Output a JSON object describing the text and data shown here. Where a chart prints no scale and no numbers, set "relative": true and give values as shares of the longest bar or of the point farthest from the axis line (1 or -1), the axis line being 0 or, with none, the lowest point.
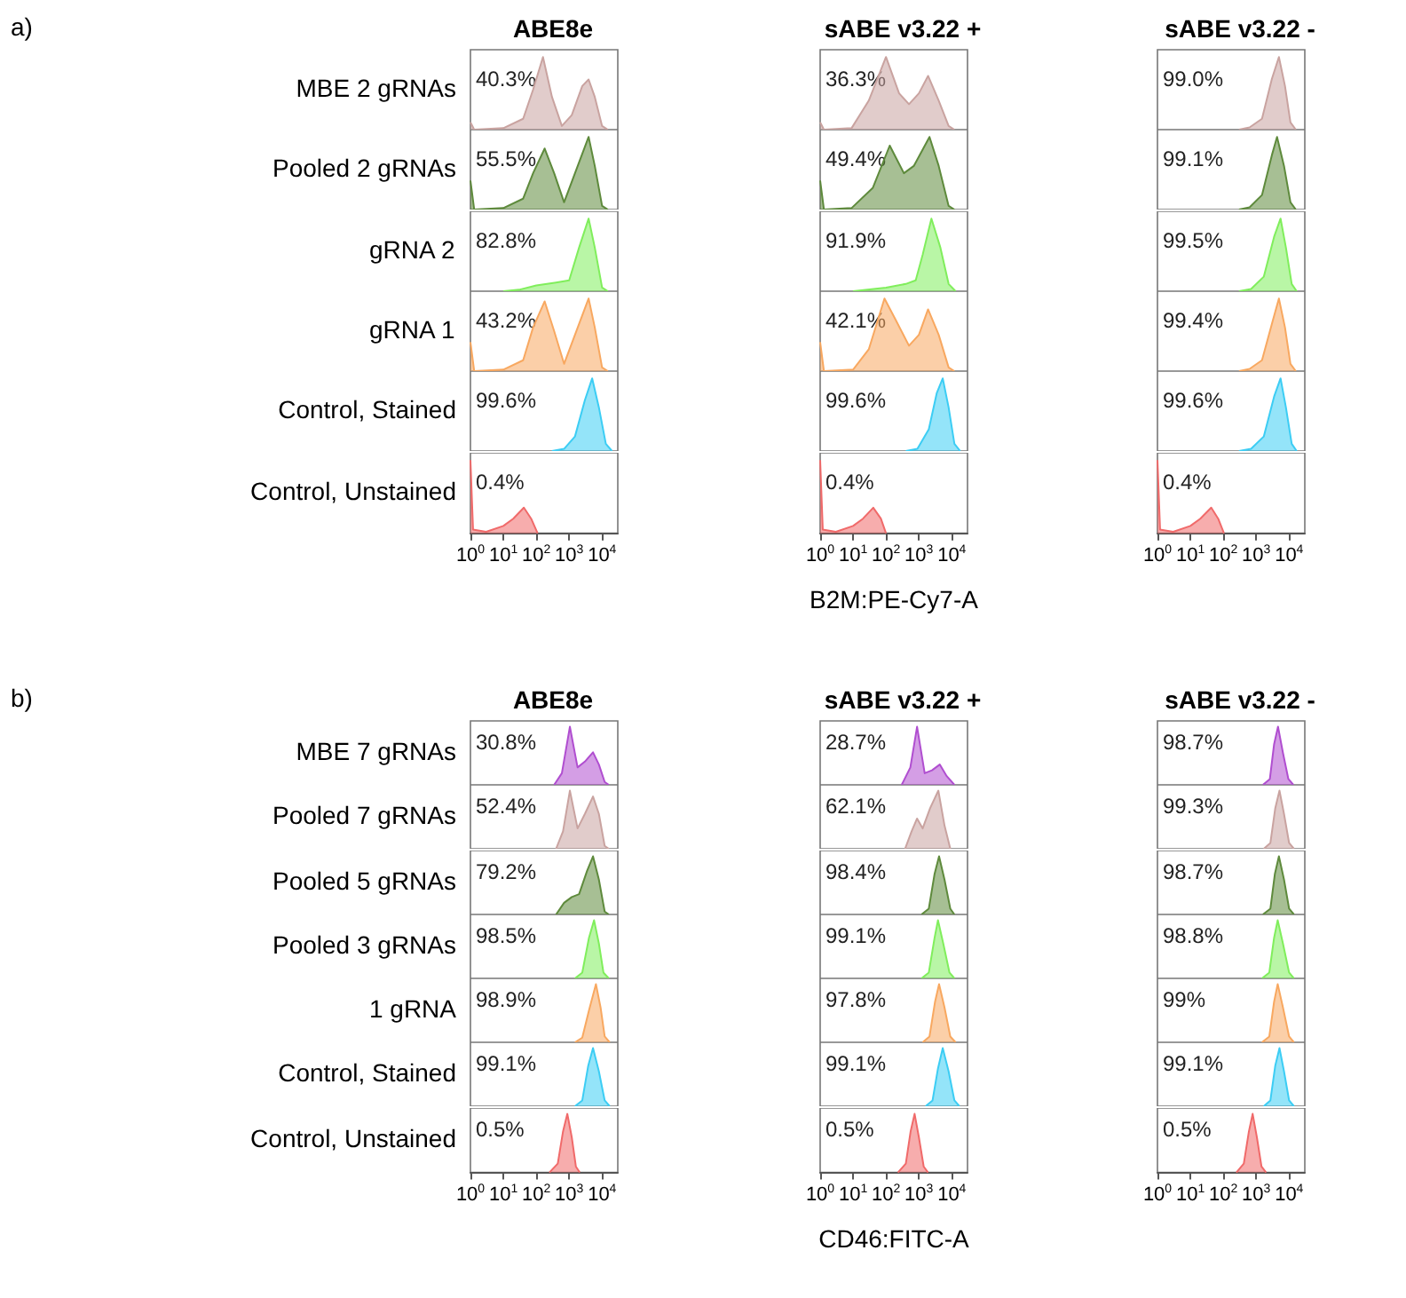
{
  "chart_data": [
    {
      "type": "area",
      "title": "ABE8e",
      "ylabel": "MBE 2 gRNAs",
      "annotations": [
        "40.3%",
        "a)"
      ],
      "x": [
        1,
        1.3,
        10,
        40,
        80,
        160,
        300,
        600,
        1200,
        2500,
        3900,
        6000,
        10000,
        15000
      ],
      "values": [
        0.1,
        0,
        0.02,
        0.15,
        0.55,
        1,
        0.45,
        0.05,
        0.2,
        0.6,
        0.69,
        0.45,
        0.05,
        0
      ],
      "color": "#c9a3a0",
      "relative": true,
      "log": "x",
      "xlim": [
        1,
        30000
      ],
      "tick_labels": false
    },
    {
      "type": "area",
      "title": "sABE v3.22 +",
      "annotations": [
        "36.3%"
      ],
      "x": [
        1,
        1.3,
        9,
        30,
        100,
        250,
        500,
        1000,
        1900,
        4000,
        8000,
        12000
      ],
      "values": [
        0.1,
        0,
        0.02,
        0.4,
        1,
        0.5,
        0.35,
        0.5,
        0.74,
        0.4,
        0.05,
        0
      ],
      "color": "#c9a3a0",
      "relative": true,
      "log": "x",
      "xlim": [
        1,
        30000
      ],
      "tick_labels": false
    },
    {
      "type": "area",
      "title": "sABE v3.22 -",
      "annotations": [
        "99.0%"
      ],
      "x": [
        300,
        630,
        1500,
        3000,
        4900,
        7500,
        11000,
        16000
      ],
      "values": [
        0,
        0.03,
        0.15,
        0.7,
        1,
        0.6,
        0.1,
        0
      ],
      "color": "#c9a3a0",
      "relative": true,
      "log": "x",
      "xlim": [
        1,
        30000
      ],
      "tick_labels": false
    },
    {
      "type": "area",
      "ylabel": "Pooled 2 gRNAs",
      "annotations": [
        "55.5%"
      ],
      "x": [
        1,
        1.3,
        10,
        40,
        80,
        180,
        350,
        700,
        1500,
        3900,
        6000,
        10000,
        15000
      ],
      "values": [
        0.4,
        0,
        0.02,
        0.15,
        0.5,
        0.84,
        0.5,
        0.1,
        0.5,
        1,
        0.6,
        0.05,
        0
      ],
      "color": "#5e8a3c",
      "relative": true,
      "log": "x",
      "xlim": [
        1,
        30000
      ],
      "tick_labels": false
    },
    {
      "type": "area",
      "annotations": [
        "49.4%"
      ],
      "x": [
        1,
        1.3,
        9,
        40,
        130,
        350,
        700,
        2100,
        4000,
        8000,
        12000
      ],
      "values": [
        0.4,
        0,
        0.02,
        0.3,
        0.88,
        0.5,
        0.6,
        1,
        0.6,
        0.05,
        0
      ],
      "color": "#5e8a3c",
      "relative": true,
      "log": "x",
      "xlim": [
        1,
        30000
      ],
      "tick_labels": false
    },
    {
      "type": "area",
      "annotations": [
        "99.1%"
      ],
      "x": [
        300,
        630,
        1500,
        3000,
        4300,
        7000,
        11000,
        16000
      ],
      "values": [
        0,
        0.03,
        0.2,
        0.75,
        1,
        0.6,
        0.1,
        0
      ],
      "color": "#5e8a3c",
      "relative": true,
      "log": "x",
      "xlim": [
        1,
        30000
      ],
      "tick_labels": false
    },
    {
      "type": "area",
      "ylabel": "gRNA 2",
      "annotations": [
        "82.8%"
      ],
      "x": [
        10,
        30,
        100,
        400,
        1000,
        2000,
        3900,
        6000,
        10000,
        15000
      ],
      "values": [
        0,
        0.02,
        0.08,
        0.12,
        0.15,
        0.6,
        1,
        0.6,
        0.05,
        0
      ],
      "color": "#80ee5c",
      "relative": true,
      "log": "x",
      "xlim": [
        1,
        30000
      ],
      "tick_labels": false
    },
    {
      "type": "area",
      "annotations": [
        "91.9%"
      ],
      "x": [
        10,
        100,
        400,
        800,
        1300,
        2400,
        4500,
        8000,
        13000
      ],
      "values": [
        0,
        0.05,
        0.1,
        0.15,
        0.5,
        1,
        0.6,
        0.1,
        0
      ],
      "color": "#80ee5c",
      "relative": true,
      "log": "x",
      "xlim": [
        1,
        30000
      ],
      "tick_labels": false
    },
    {
      "type": "area",
      "annotations": [
        "99.5%"
      ],
      "x": [
        300,
        700,
        1700,
        3500,
        5500,
        8000,
        12000,
        17000
      ],
      "values": [
        0,
        0.03,
        0.2,
        0.75,
        1,
        0.6,
        0.1,
        0
      ],
      "color": "#80ee5c",
      "relative": true,
      "log": "x",
      "xlim": [
        1,
        30000
      ],
      "tick_labels": false
    },
    {
      "type": "area",
      "ylabel": "gRNA 1",
      "annotations": [
        "43.2%"
      ],
      "x": [
        1,
        1.3,
        10,
        40,
        80,
        180,
        350,
        700,
        1500,
        3900,
        6000,
        10000,
        15000
      ],
      "values": [
        0.4,
        0,
        0.02,
        0.15,
        0.6,
        0.96,
        0.55,
        0.1,
        0.5,
        1,
        0.6,
        0.05,
        0
      ],
      "color": "#f8a860",
      "relative": true,
      "log": "x",
      "xlim": [
        1,
        30000
      ],
      "tick_labels": false
    },
    {
      "type": "area",
      "annotations": [
        "42.1%"
      ],
      "x": [
        1,
        1.3,
        10,
        30,
        90,
        200,
        500,
        1000,
        1900,
        4000,
        8000,
        12000
      ],
      "values": [
        0.4,
        0,
        0.02,
        0.3,
        1,
        0.7,
        0.35,
        0.5,
        0.85,
        0.5,
        0.05,
        0
      ],
      "color": "#f8a860",
      "relative": true,
      "log": "x",
      "xlim": [
        1,
        30000
      ],
      "tick_labels": false
    },
    {
      "type": "area",
      "annotations": [
        "99.4%"
      ],
      "x": [
        300,
        630,
        1500,
        3000,
        4900,
        7500,
        11000,
        16000
      ],
      "values": [
        0,
        0.03,
        0.15,
        0.65,
        1,
        0.6,
        0.1,
        0
      ],
      "color": "#f8a860",
      "relative": true,
      "log": "x",
      "xlim": [
        1,
        30000
      ],
      "tick_labels": false
    },
    {
      "type": "area",
      "ylabel": "Control, Stained",
      "annotations": [
        "99.6%"
      ],
      "x": [
        300,
        700,
        1500,
        3000,
        5000,
        8000,
        13000,
        20000
      ],
      "values": [
        0,
        0.03,
        0.2,
        0.7,
        1,
        0.6,
        0.1,
        0
      ],
      "color": "#3ccdf4",
      "relative": true,
      "log": "x",
      "xlim": [
        1,
        30000
      ],
      "tick_labels": false
    },
    {
      "type": "area",
      "annotations": [
        "99.6%"
      ],
      "x": [
        400,
        900,
        2000,
        3500,
        5300,
        8000,
        12000,
        18000
      ],
      "values": [
        0,
        0.03,
        0.3,
        0.8,
        1,
        0.6,
        0.1,
        0
      ],
      "color": "#3ccdf4",
      "relative": true,
      "log": "x",
      "xlim": [
        1,
        30000
      ],
      "tick_labels": false
    },
    {
      "type": "area",
      "annotations": [
        "99.6%"
      ],
      "x": [
        300,
        700,
        1700,
        3500,
        5500,
        8000,
        12000,
        17000
      ],
      "values": [
        0,
        0.03,
        0.2,
        0.75,
        1,
        0.6,
        0.1,
        0
      ],
      "color": "#3ccdf4",
      "relative": true,
      "log": "x",
      "xlim": [
        1,
        30000
      ],
      "tick_labels": false
    },
    {
      "type": "area",
      "ylabel": "Control, Unstained",
      "annotations": [
        "0.4%"
      ],
      "x": [
        1,
        1.2,
        3,
        10,
        20,
        42,
        70,
        110
      ],
      "values": [
        1,
        0.05,
        0.02,
        0.1,
        0.2,
        0.35,
        0.2,
        0
      ],
      "color": "#f06a6a",
      "relative": true,
      "log": "x",
      "xlim": [
        1,
        30000
      ],
      "tick_labels": "x",
      "xticks": [
        {
          "value": 1,
          "label": "10$^{0}$"
        },
        {
          "value": 10,
          "label": "10$^{1}$"
        },
        {
          "value": 100,
          "label": "10$^{2}$"
        },
        {
          "value": 1000,
          "label": "10$^{3}$"
        },
        {
          "value": 10000,
          "label": "10$^{4}$"
        }
      ]
    },
    {
      "type": "area",
      "xlabel": "B2M:PE-Cy7-A",
      "annotations": [
        "0.4%"
      ],
      "x": [
        1,
        1.2,
        3,
        10,
        20,
        41,
        70,
        100
      ],
      "values": [
        1,
        0.05,
        0.02,
        0.1,
        0.2,
        0.35,
        0.2,
        0
      ],
      "color": "#f06a6a",
      "relative": true,
      "log": "x",
      "xlim": [
        1,
        30000
      ],
      "tick_labels": "x",
      "xticks": [
        {
          "value": 1,
          "label": "10$^{0}$"
        },
        {
          "value": 10,
          "label": "10$^{1}$"
        },
        {
          "value": 100,
          "label": "10$^{2}$"
        },
        {
          "value": 1000,
          "label": "10$^{3}$"
        },
        {
          "value": 10000,
          "label": "10$^{4}$"
        }
      ]
    },
    {
      "type": "area",
      "annotations": [
        "0.4%"
      ],
      "x": [
        1,
        1.2,
        3,
        10,
        20,
        43,
        70,
        105
      ],
      "values": [
        1,
        0.05,
        0.02,
        0.1,
        0.2,
        0.35,
        0.2,
        0
      ],
      "color": "#f06a6a",
      "relative": true,
      "log": "x",
      "xlim": [
        1,
        30000
      ],
      "tick_labels": "x",
      "xticks": [
        {
          "value": 1,
          "label": "10$^{0}$"
        },
        {
          "value": 10,
          "label": "10$^{1}$"
        },
        {
          "value": 100,
          "label": "10$^{2}$"
        },
        {
          "value": 1000,
          "label": "10$^{3}$"
        },
        {
          "value": 10000,
          "label": "10$^{4}$"
        }
      ]
    },
    {
      "type": "area",
      "title": "ABE8e",
      "ylabel": "MBE 7 gRNAs",
      "annotations": [
        "30.8%",
        "b)"
      ],
      "x": [
        350,
        600,
        1050,
        1800,
        3000,
        5300,
        8000,
        12000,
        16000
      ],
      "values": [
        0,
        0.2,
        1,
        0.3,
        0.4,
        0.56,
        0.35,
        0.05,
        0
      ],
      "color": "#b04ed0",
      "relative": true,
      "log": "x",
      "xlim": [
        1,
        30000
      ],
      "tick_labels": false
    },
    {
      "type": "area",
      "title": "sABE v3.22 +",
      "annotations": [
        "28.7%"
      ],
      "x": [
        300,
        550,
        880,
        1500,
        2500,
        4300,
        7000,
        12000
      ],
      "values": [
        0,
        0.3,
        1,
        0.2,
        0.25,
        0.35,
        0.15,
        0
      ],
      "color": "#b04ed0",
      "relative": true,
      "log": "x",
      "xlim": [
        1,
        30000
      ],
      "tick_labels": false
    },
    {
      "type": "area",
      "title": "sABE v3.22 -",
      "annotations": [
        "98.7%"
      ],
      "x": [
        1600,
        2600,
        3500,
        4600,
        6500,
        9500,
        13500
      ],
      "values": [
        0,
        0.1,
        0.7,
        1,
        0.55,
        0.1,
        0
      ],
      "color": "#b04ed0",
      "relative": true,
      "log": "x",
      "xlim": [
        1,
        30000
      ],
      "tick_labels": false
    },
    {
      "type": "area",
      "ylabel": "Pooled 7 gRNAs",
      "annotations": [
        "52.4%"
      ],
      "x": [
        400,
        650,
        1050,
        1800,
        3000,
        5300,
        8000,
        12000,
        16000
      ],
      "values": [
        0,
        0.3,
        1,
        0.35,
        0.6,
        0.9,
        0.6,
        0.05,
        0
      ],
      "color": "#c9a3a0",
      "relative": true,
      "log": "x",
      "xlim": [
        1,
        30000
      ],
      "tick_labels": false
    },
    {
      "type": "area",
      "annotations": [
        "62.1%"
      ],
      "x": [
        380,
        600,
        880,
        1300,
        2200,
        3900,
        6000,
        9000
      ],
      "values": [
        0,
        0.3,
        0.52,
        0.35,
        0.7,
        1,
        0.4,
        0
      ],
      "color": "#c9a3a0",
      "relative": true,
      "log": "x",
      "xlim": [
        1,
        30000
      ],
      "tick_labels": false
    },
    {
      "type": "area",
      "annotations": [
        "99.3%"
      ],
      "x": [
        1700,
        2700,
        3800,
        5100,
        7000,
        10000,
        14000
      ],
      "values": [
        0,
        0.1,
        0.7,
        1,
        0.6,
        0.1,
        0
      ],
      "color": "#c9a3a0",
      "relative": true,
      "log": "x",
      "xlim": [
        1,
        30000
      ],
      "tick_labels": false
    },
    {
      "type": "area",
      "ylabel": "Pooled 5 gRNAs",
      "annotations": [
        "79.2%"
      ],
      "x": [
        400,
        700,
        1200,
        2000,
        3500,
        5300,
        8000,
        12000,
        16000
      ],
      "values": [
        0,
        0.2,
        0.3,
        0.35,
        0.75,
        1,
        0.6,
        0.05,
        0
      ],
      "color": "#5e8a3c",
      "relative": true,
      "log": "x",
      "xlim": [
        1,
        30000
      ],
      "tick_labels": false
    },
    {
      "type": "area",
      "annotations": [
        "98.4%"
      ],
      "x": [
        1200,
        2000,
        3000,
        4100,
        6000,
        9000,
        12000
      ],
      "values": [
        0,
        0.1,
        0.7,
        1,
        0.6,
        0.1,
        0
      ],
      "color": "#5e8a3c",
      "relative": true,
      "log": "x",
      "xlim": [
        1,
        30000
      ],
      "tick_labels": false
    },
    {
      "type": "area",
      "annotations": [
        "98.7%"
      ],
      "x": [
        1600,
        2700,
        3700,
        4900,
        7000,
        10000,
        14000
      ],
      "values": [
        0,
        0.1,
        0.7,
        1,
        0.6,
        0.1,
        0
      ],
      "color": "#5e8a3c",
      "relative": true,
      "log": "x",
      "xlim": [
        1,
        30000
      ],
      "tick_labels": false
    },
    {
      "type": "area",
      "ylabel": "Pooled 3 gRNAs",
      "annotations": [
        "98.5%"
      ],
      "x": [
        1500,
        2500,
        4000,
        5700,
        8000,
        11000,
        16000
      ],
      "values": [
        0,
        0.1,
        0.7,
        1,
        0.6,
        0.1,
        0
      ],
      "color": "#80ee5c",
      "relative": true,
      "log": "x",
      "xlim": [
        1,
        30000
      ],
      "tick_labels": false
    },
    {
      "type": "area",
      "annotations": [
        "99.1%"
      ],
      "x": [
        1200,
        2000,
        3000,
        3800,
        5500,
        8500,
        12000
      ],
      "values": [
        0,
        0.1,
        0.7,
        1,
        0.6,
        0.1,
        0
      ],
      "color": "#80ee5c",
      "relative": true,
      "log": "x",
      "xlim": [
        1,
        30000
      ],
      "tick_labels": false
    },
    {
      "type": "area",
      "annotations": [
        "98.8%"
      ],
      "x": [
        1500,
        2500,
        3500,
        4500,
        6500,
        10000,
        14000
      ],
      "values": [
        0,
        0.1,
        0.7,
        1,
        0.6,
        0.1,
        0
      ],
      "color": "#80ee5c",
      "relative": true,
      "log": "x",
      "xlim": [
        1,
        30000
      ],
      "tick_labels": false
    },
    {
      "type": "area",
      "ylabel": "1 gRNA",
      "annotations": [
        "98.9%"
      ],
      "x": [
        1500,
        2500,
        4000,
        6500,
        9000,
        12000,
        17000
      ],
      "values": [
        0,
        0.08,
        0.55,
        1,
        0.6,
        0.1,
        0
      ],
      "color": "#f8a860",
      "relative": true,
      "log": "x",
      "xlim": [
        1,
        30000
      ],
      "tick_labels": false
    },
    {
      "type": "area",
      "annotations": [
        "97.8%"
      ],
      "x": [
        1300,
        2100,
        3100,
        4100,
        6000,
        9000,
        13000
      ],
      "values": [
        0,
        0.1,
        0.7,
        1,
        0.6,
        0.1,
        0
      ],
      "color": "#f8a860",
      "relative": true,
      "log": "x",
      "xlim": [
        1,
        30000
      ],
      "tick_labels": false
    },
    {
      "type": "area",
      "annotations": [
        "99%"
      ],
      "x": [
        1500,
        2500,
        3500,
        4500,
        6500,
        10000,
        14000
      ],
      "values": [
        0,
        0.1,
        0.7,
        1,
        0.6,
        0.1,
        0
      ],
      "color": "#f8a860",
      "relative": true,
      "log": "x",
      "xlim": [
        1,
        30000
      ],
      "tick_labels": false
    },
    {
      "type": "area",
      "ylabel": "Control, Stained",
      "annotations": [
        "99.1%"
      ],
      "x": [
        1500,
        2500,
        3800,
        5300,
        8000,
        12000,
        17000
      ],
      "values": [
        0,
        0.1,
        0.7,
        1,
        0.6,
        0.1,
        0
      ],
      "color": "#3ccdf4",
      "relative": true,
      "log": "x",
      "xlim": [
        1,
        30000
      ],
      "tick_labels": false
    },
    {
      "type": "area",
      "annotations": [
        "99.1%"
      ],
      "x": [
        1600,
        2600,
        3800,
        5300,
        8000,
        12000,
        17000
      ],
      "values": [
        0,
        0.1,
        0.65,
        1,
        0.6,
        0.1,
        0
      ],
      "color": "#3ccdf4",
      "relative": true,
      "log": "x",
      "xlim": [
        1,
        30000
      ],
      "tick_labels": false
    },
    {
      "type": "area",
      "annotations": [
        "99.1%"
      ],
      "x": [
        1700,
        2700,
        3800,
        5100,
        7000,
        10000,
        14000
      ],
      "values": [
        0,
        0.1,
        0.7,
        1,
        0.6,
        0.1,
        0
      ],
      "color": "#3ccdf4",
      "relative": true,
      "log": "x",
      "xlim": [
        1,
        30000
      ],
      "tick_labels": false
    },
    {
      "type": "area",
      "ylabel": "Control, Unstained",
      "annotations": [
        "0.5%"
      ],
      "x": [
        250,
        450,
        650,
        880,
        1200,
        1600,
        2100
      ],
      "values": [
        0,
        0.15,
        0.7,
        1,
        0.6,
        0.1,
        0
      ],
      "color": "#f06a6a",
      "relative": true,
      "log": "x",
      "xlim": [
        1,
        30000
      ],
      "tick_labels": "x",
      "xticks": [
        {
          "value": 1,
          "label": "10$^{0}$"
        },
        {
          "value": 10,
          "label": "10$^{1}$"
        },
        {
          "value": 100,
          "label": "10$^{2}$"
        },
        {
          "value": 1000,
          "label": "10$^{3}$"
        },
        {
          "value": 10000,
          "label": "10$^{4}$"
        }
      ]
    },
    {
      "type": "area",
      "xlabel": "CD46:FITC-A",
      "annotations": [
        "0.5%"
      ],
      "x": [
        230,
        400,
        560,
        740,
        1000,
        1400,
        1900
      ],
      "values": [
        0,
        0.15,
        0.7,
        1,
        0.6,
        0.1,
        0
      ],
      "color": "#f06a6a",
      "relative": true,
      "log": "x",
      "xlim": [
        1,
        30000
      ],
      "tick_labels": "x",
      "xticks": [
        {
          "value": 1,
          "label": "10$^{0}$"
        },
        {
          "value": 10,
          "label": "10$^{1}$"
        },
        {
          "value": 100,
          "label": "10$^{2}$"
        },
        {
          "value": 1000,
          "label": "10$^{3}$"
        },
        {
          "value": 10000,
          "label": "10$^{4}$"
        }
      ]
    },
    {
      "type": "area",
      "annotations": [
        "0.5%"
      ],
      "x": [
        250,
        420,
        600,
        780,
        1050,
        1450,
        2000
      ],
      "values": [
        0,
        0.15,
        0.7,
        1,
        0.6,
        0.1,
        0
      ],
      "color": "#f06a6a",
      "relative": true,
      "log": "x",
      "xlim": [
        1,
        30000
      ],
      "tick_labels": "x",
      "xticks": [
        {
          "value": 1,
          "label": "10$^{0}$"
        },
        {
          "value": 10,
          "label": "10$^{1}$"
        },
        {
          "value": 100,
          "label": "10$^{2}$"
        },
        {
          "value": 1000,
          "label": "10$^{3}$"
        },
        {
          "value": 10000,
          "label": "10$^{4}$"
        }
      ]
    }
  ]
}
